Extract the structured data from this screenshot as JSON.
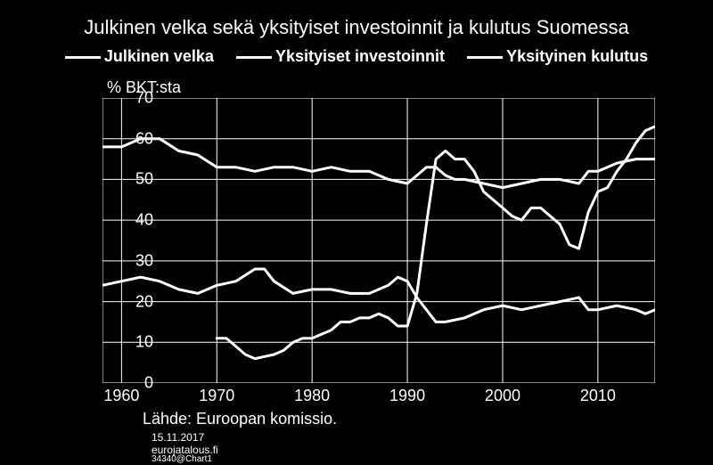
{
  "title": "Julkinen velka sekä yksityiset investoinnit ja kulutus Suomessa",
  "yaxis_label": "% BKT:sta",
  "legend": {
    "items": [
      "Julkinen velka",
      "Yksityiset investoinnit",
      "Yksityinen kulutus"
    ]
  },
  "source": "Lähde: Euroopan komissio.",
  "date": "15.11.2017",
  "siteurl": "eurojatalous.fi",
  "chartid": "34340@Chart1",
  "chart": {
    "type": "line",
    "background_color": "#000000",
    "grid_color": "#ffffff",
    "axis_color": "#ffffff",
    "line_color": "#ffffff",
    "line_width": 3,
    "xlim": [
      1958,
      2016
    ],
    "ylim": [
      0,
      70
    ],
    "yticks": [
      0,
      10,
      20,
      30,
      40,
      50,
      60,
      70
    ],
    "xticks": [
      1960,
      1970,
      1980,
      1990,
      2000,
      2010
    ],
    "title_fontsize": 22,
    "tick_fontsize": 18,
    "series": [
      {
        "name": "Julkinen velka",
        "years": [
          1970,
          1971,
          1972,
          1973,
          1974,
          1975,
          1976,
          1977,
          1978,
          1979,
          1980,
          1981,
          1982,
          1983,
          1984,
          1985,
          1986,
          1987,
          1988,
          1989,
          1990,
          1991,
          1992,
          1993,
          1994,
          1995,
          1996,
          1997,
          1998,
          1999,
          2000,
          2001,
          2002,
          2003,
          2004,
          2005,
          2006,
          2007,
          2008,
          2009,
          2010,
          2011,
          2012,
          2013,
          2014,
          2015,
          2016
        ],
        "values": [
          11,
          11,
          9,
          7,
          6,
          6.5,
          7,
          8,
          10,
          11,
          11,
          12,
          13,
          15,
          15,
          16,
          16,
          17,
          16,
          14,
          14,
          22,
          39,
          55,
          57,
          55,
          55,
          52,
          47,
          45,
          43,
          41,
          40,
          43,
          43,
          41,
          39,
          34,
          33,
          42,
          47,
          48,
          52,
          55,
          59,
          62,
          63
        ]
      },
      {
        "name": "Yksityiset investoinnit",
        "years": [
          1958,
          1960,
          1962,
          1964,
          1965,
          1966,
          1968,
          1970,
          1972,
          1974,
          1975,
          1976,
          1978,
          1980,
          1982,
          1984,
          1986,
          1988,
          1989,
          1990,
          1991,
          1992,
          1993,
          1994,
          1996,
          1998,
          2000,
          2002,
          2004,
          2006,
          2008,
          2009,
          2010,
          2012,
          2014,
          2015,
          2016
        ],
        "values": [
          24,
          25,
          26,
          25,
          24,
          23,
          22,
          24,
          25,
          28,
          28,
          25,
          22,
          23,
          23,
          22,
          22,
          24,
          26,
          25,
          21,
          18,
          15,
          15,
          16,
          18,
          19,
          18,
          19,
          20,
          21,
          18,
          18,
          19,
          18,
          17,
          18
        ]
      },
      {
        "name": "Yksityinen kulutus",
        "years": [
          1958,
          1960,
          1962,
          1964,
          1966,
          1968,
          1970,
          1972,
          1974,
          1976,
          1978,
          1980,
          1982,
          1984,
          1986,
          1988,
          1990,
          1991,
          1992,
          1993,
          1994,
          1995,
          1996,
          1998,
          2000,
          2002,
          2004,
          2006,
          2008,
          2009,
          2010,
          2012,
          2014,
          2015,
          2016
        ],
        "values": [
          58,
          58,
          60,
          60,
          57,
          56,
          53,
          53,
          52,
          53,
          53,
          52,
          53,
          52,
          52,
          50,
          49,
          51,
          53,
          53,
          51,
          50,
          50,
          49,
          48,
          49,
          50,
          50,
          49,
          52,
          52,
          54,
          55,
          55,
          55
        ]
      }
    ]
  }
}
